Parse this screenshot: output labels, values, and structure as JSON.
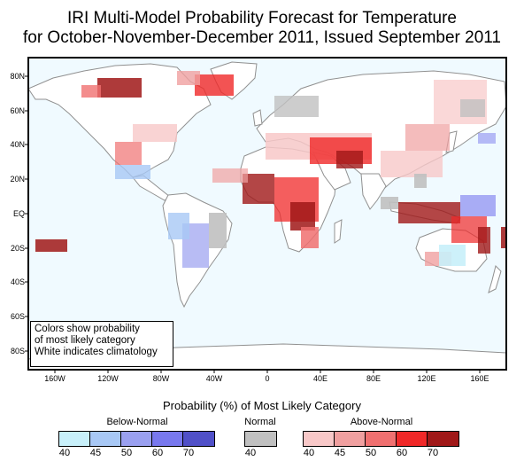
{
  "title_line1": "IRI Multi-Model Probability Forecast for Temperature",
  "title_line2": "for October-November-December 2011, Issued September 2011",
  "lat_ticks": [
    "80N",
    "60N",
    "40N",
    "20N",
    "EQ",
    "20S",
    "40S",
    "60S",
    "80S"
  ],
  "lon_ticks": [
    "160W",
    "120W",
    "80W",
    "40W",
    "0",
    "40E",
    "80E",
    "120E",
    "160E"
  ],
  "note_lines": [
    "Colors show probability",
    "of most likely category",
    "White indicates climatology"
  ],
  "legend": {
    "title": "Probability (%) of Most Likely Category",
    "below": {
      "label": "Below-Normal",
      "colors": [
        "#c8f0fa",
        "#a8c8f5",
        "#9aa0f0",
        "#7878ee",
        "#5050c8"
      ],
      "values": [
        "40",
        "45",
        "50",
        "60",
        "70"
      ]
    },
    "normal": {
      "label": "Normal",
      "colors": [
        "#c0c0c0"
      ],
      "values": [
        "40"
      ]
    },
    "above": {
      "label": "Above-Normal",
      "colors": [
        "#f8c8c8",
        "#f0a0a0",
        "#f07070",
        "#f02828",
        "#a01818"
      ],
      "values": [
        "40",
        "45",
        "50",
        "60",
        "70"
      ]
    }
  },
  "colors": {
    "ocean": "#f0faff",
    "land_outline": "#909090"
  }
}
